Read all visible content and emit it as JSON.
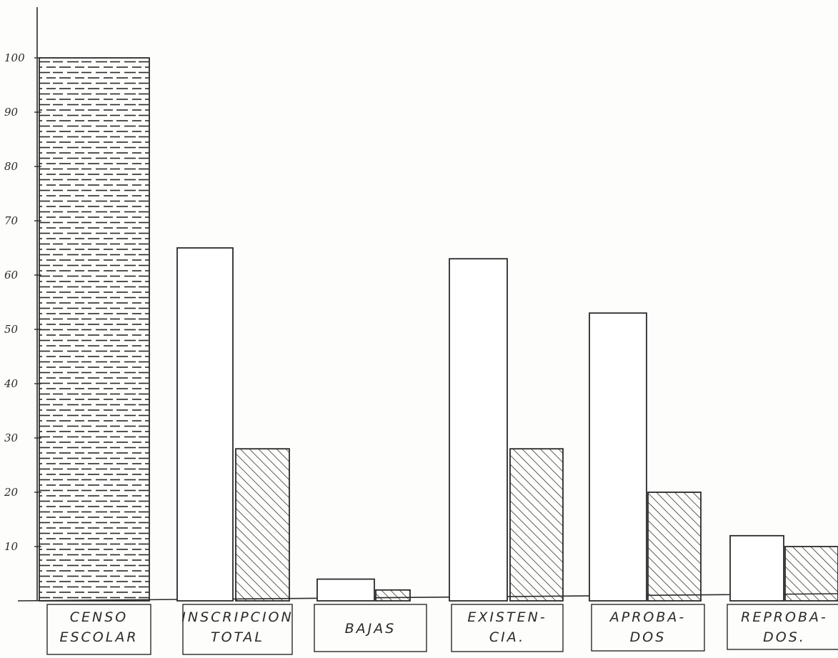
{
  "chart_data": {
    "type": "bar",
    "title": "",
    "xlabel": "",
    "ylabel": "",
    "ylim": [
      0,
      100
    ],
    "yticks": [
      10,
      20,
      30,
      40,
      50,
      60,
      70,
      80,
      90,
      100
    ],
    "ytick_labels": [
      "10",
      "20",
      "30",
      "40",
      "50",
      "60",
      "70",
      "80",
      "90",
      "100"
    ],
    "grid": false,
    "legend": "none",
    "categories": [
      {
        "lines": [
          "CENSO",
          "ESCOLAR"
        ]
      },
      {
        "lines": [
          "INSCRIPCION",
          "TOTAL"
        ]
      },
      {
        "lines": [
          "BAJAS"
        ]
      },
      {
        "lines": [
          "EXISTEN-",
          "CIA."
        ]
      },
      {
        "lines": [
          "APROBA-",
          "DOS"
        ]
      },
      {
        "lines": [
          "REPROBA-",
          "DOS."
        ]
      }
    ],
    "series": [
      {
        "pattern": "dashed-horizontal",
        "values": [
          100,
          null,
          null,
          null,
          null,
          null
        ]
      },
      {
        "pattern": "blank",
        "values": [
          null,
          65,
          4,
          63,
          53,
          12
        ]
      },
      {
        "pattern": "diagonal-hatch",
        "values": [
          null,
          28,
          2,
          28,
          20,
          10
        ]
      }
    ]
  },
  "colors": {
    "ink": "#2a2a2a",
    "paper": "#fdfdfb"
  }
}
